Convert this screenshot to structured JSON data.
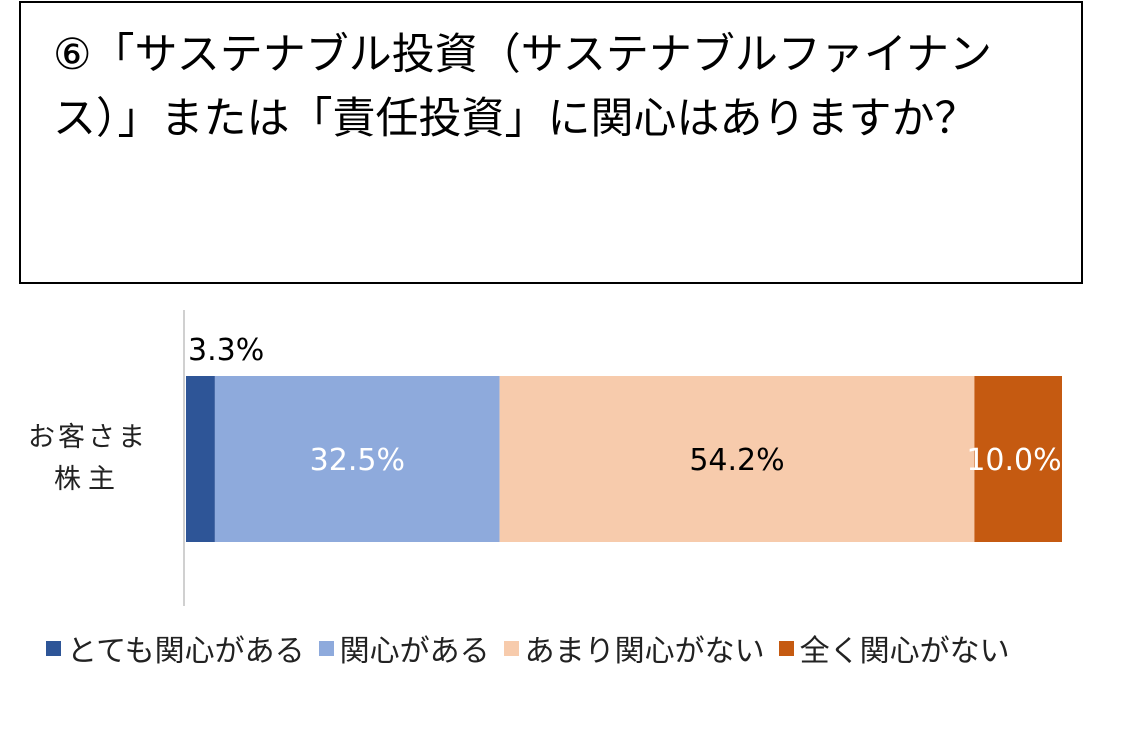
{
  "question": {
    "line1": "⑥「サステナブル投資（サステナブルファイナン",
    "line2": "ス）」または「責任投資」に関心はありますか？"
  },
  "chart_data": {
    "type": "bar",
    "orientation": "horizontal",
    "stacked": true,
    "categories": [
      "お客さま\n株主"
    ],
    "category_label_lines": [
      "お客さま",
      "株主"
    ],
    "xlim": [
      0,
      100
    ],
    "grid": false,
    "legend_position": "bottom",
    "series": [
      {
        "name": "とても関心がある",
        "values": [
          3.3
        ],
        "label": "3.3%",
        "color": "#2e5597",
        "label_color": "#000000",
        "label_position": "above"
      },
      {
        "name": "関心がある",
        "values": [
          32.5
        ],
        "label": "32.5%",
        "color": "#8eaadc",
        "label_color": "#ffffff",
        "label_position": "center"
      },
      {
        "name": "あまり関心がない",
        "values": [
          54.2
        ],
        "label": "54.2%",
        "color": "#f7cbac",
        "label_color": "#000000",
        "label_position": "center"
      },
      {
        "name": "全く関心がない",
        "values": [
          10.0
        ],
        "label": "10.0%",
        "color": "#c55a11",
        "label_color": "#ffffff",
        "label_position": "center"
      }
    ]
  }
}
